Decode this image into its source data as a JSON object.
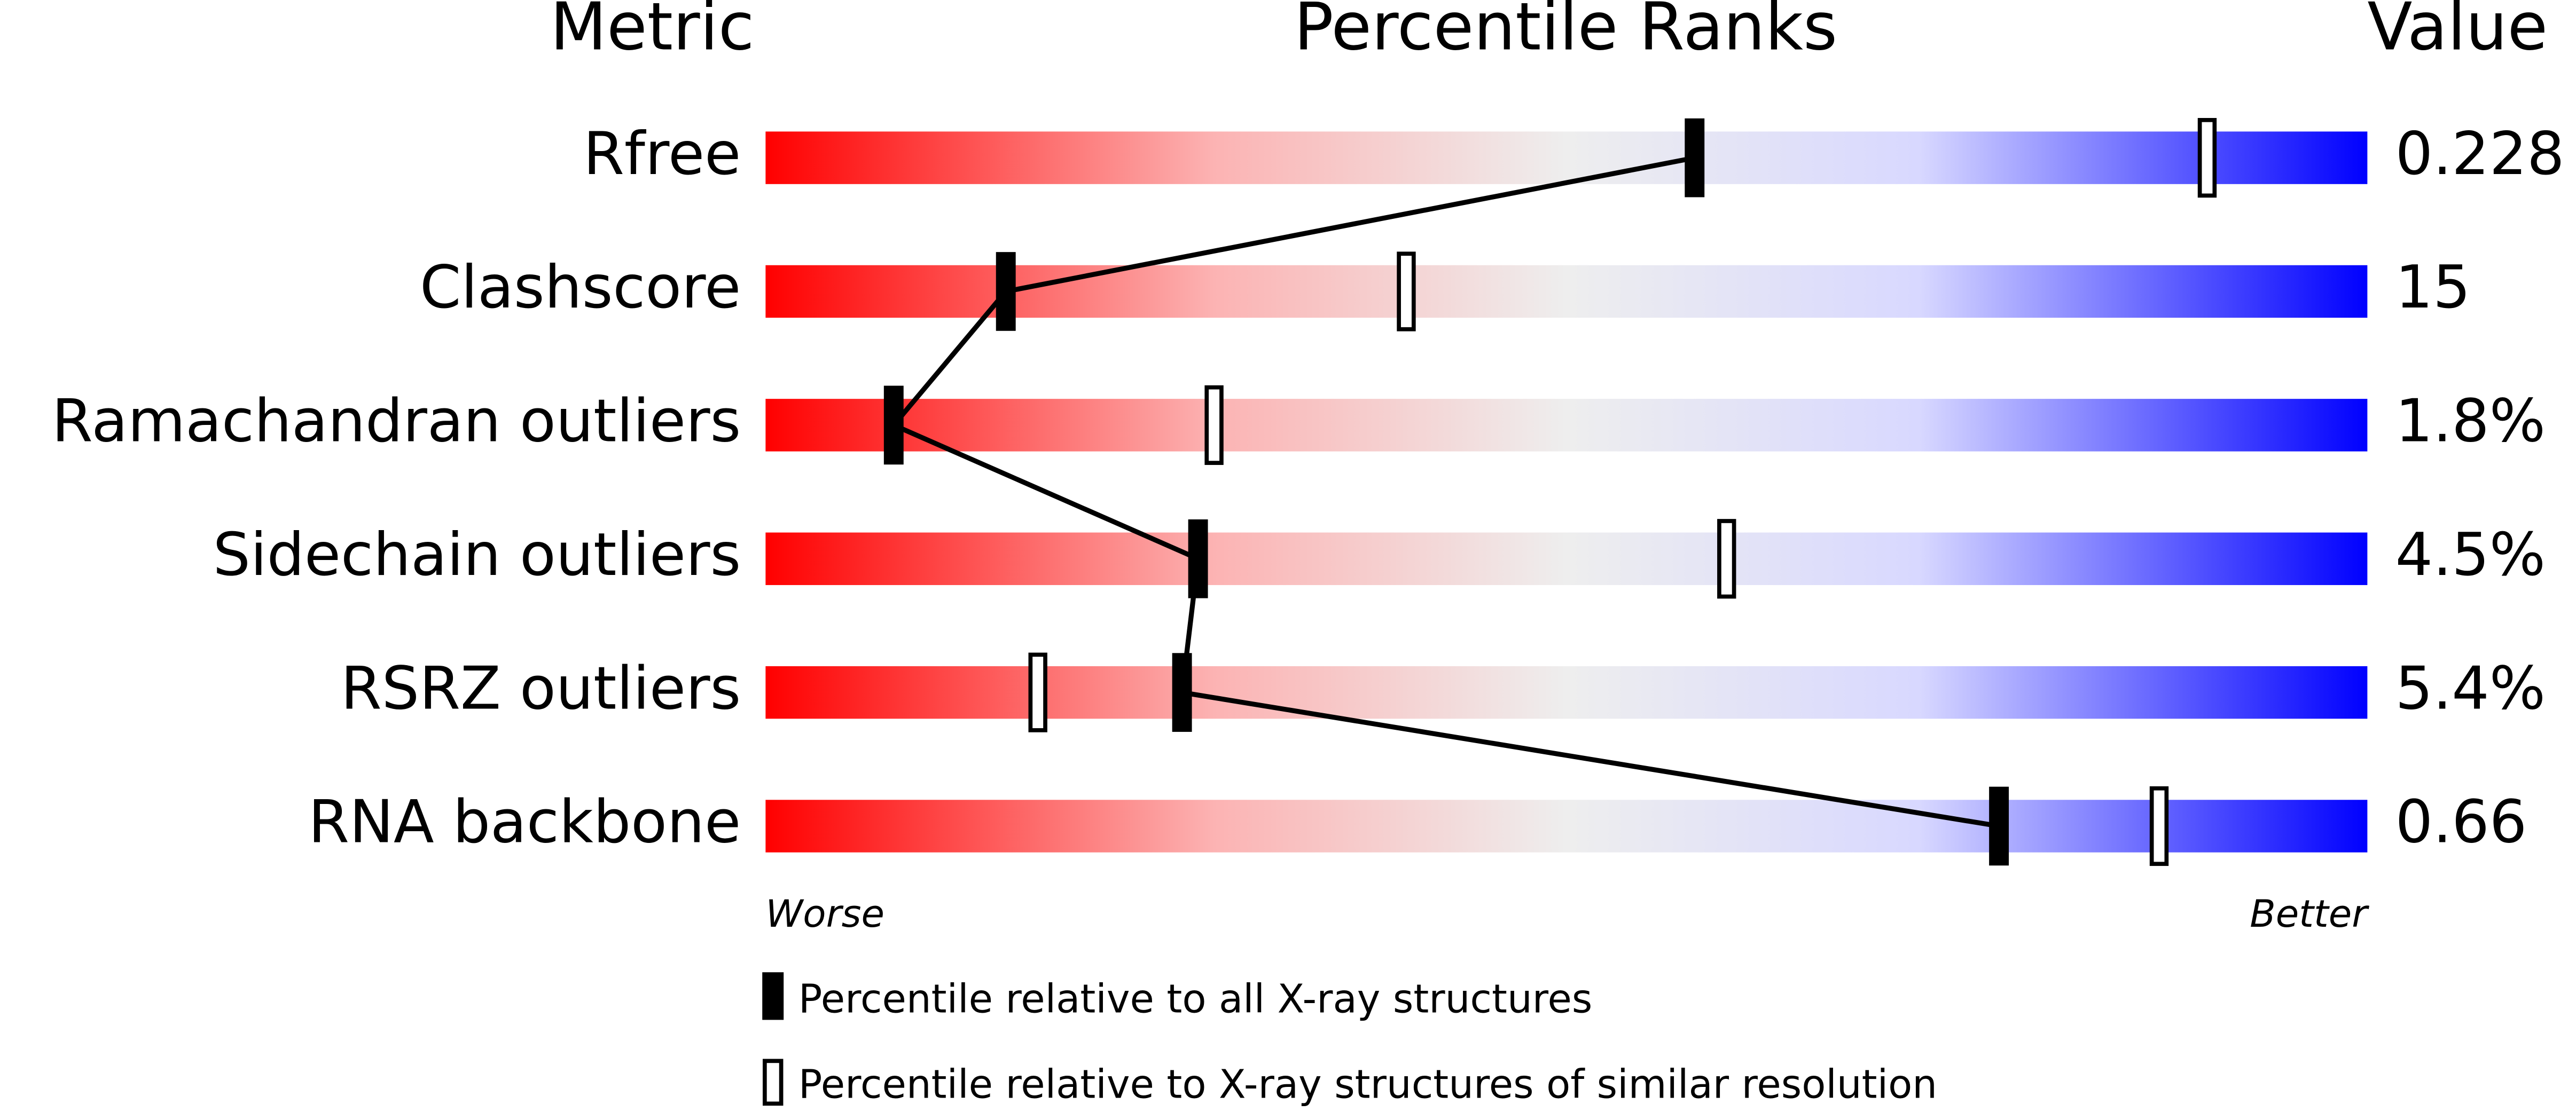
{
  "chart_data": {
    "type": "slider",
    "headers": [
      "Metric",
      "Percentile Ranks",
      "Value"
    ],
    "categories": [
      "Rfree",
      "Clashscore",
      "Ramachandran outliers",
      "Sidechain outliers",
      "RSRZ outliers",
      "RNA backbone"
    ],
    "metric_values": [
      "0.228",
      "15",
      "1.8%",
      "4.5%",
      "5.4%",
      "0.66"
    ],
    "series": [
      {
        "name": "Percentile relative to all X-ray structures",
        "color": "#000000",
        "values": [
          58,
          15,
          8,
          27,
          26,
          77
        ]
      },
      {
        "name": "Percentile relative to X-ray structures of similar resolution",
        "color": "#000000",
        "values": [
          90,
          40,
          28,
          60,
          17,
          87
        ]
      }
    ],
    "xlim": [
      0,
      100
    ],
    "worse_label": "Worse",
    "better_label": "Better"
  }
}
